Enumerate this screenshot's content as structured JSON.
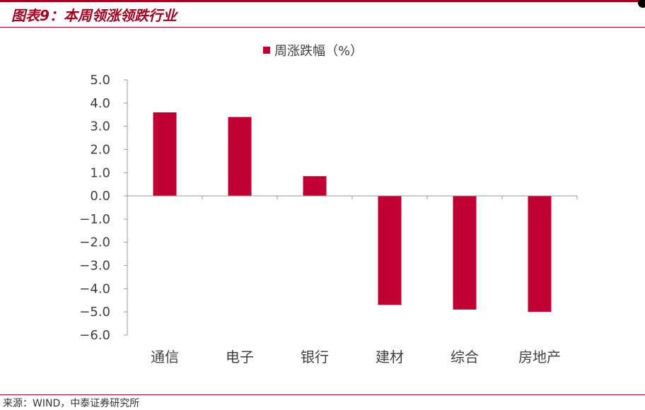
{
  "figure": {
    "title": "图表9：本周领涨领跌行业",
    "source": "来源：WIND，中泰证券研究所"
  },
  "chart_data": {
    "type": "bar",
    "categories": [
      "通信",
      "电子",
      "银行",
      "建材",
      "综合",
      "房地产"
    ],
    "series": [
      {
        "name": "周涨跌幅（%）",
        "values": [
          3.6,
          3.4,
          0.85,
          -4.7,
          -4.9,
          -5.0
        ]
      }
    ],
    "ylim": [
      -6.0,
      5.0
    ],
    "yticks": [
      "5.0",
      "4.0",
      "3.0",
      "2.0",
      "1.0",
      "0.0",
      "-1.0",
      "-2.0",
      "-3.0",
      "-4.0",
      "-5.0",
      "-6.0"
    ],
    "grid": false,
    "legend": "top-center",
    "bar_color": "#c00032"
  },
  "colors": {
    "accent": "#a50021",
    "bar": "#c00032"
  }
}
